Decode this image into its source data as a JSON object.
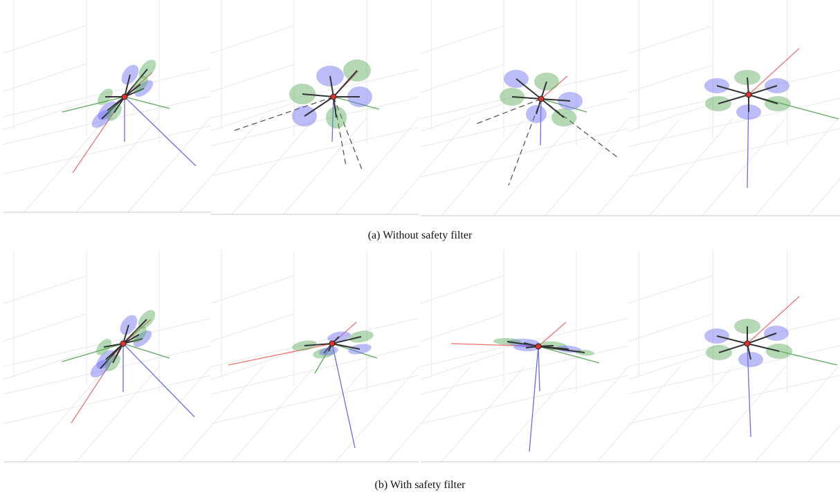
{
  "figure": {
    "rows": [
      {
        "caption": "(a) Without safety filter"
      },
      {
        "caption": "(b) With safety filter"
      }
    ]
  }
}
